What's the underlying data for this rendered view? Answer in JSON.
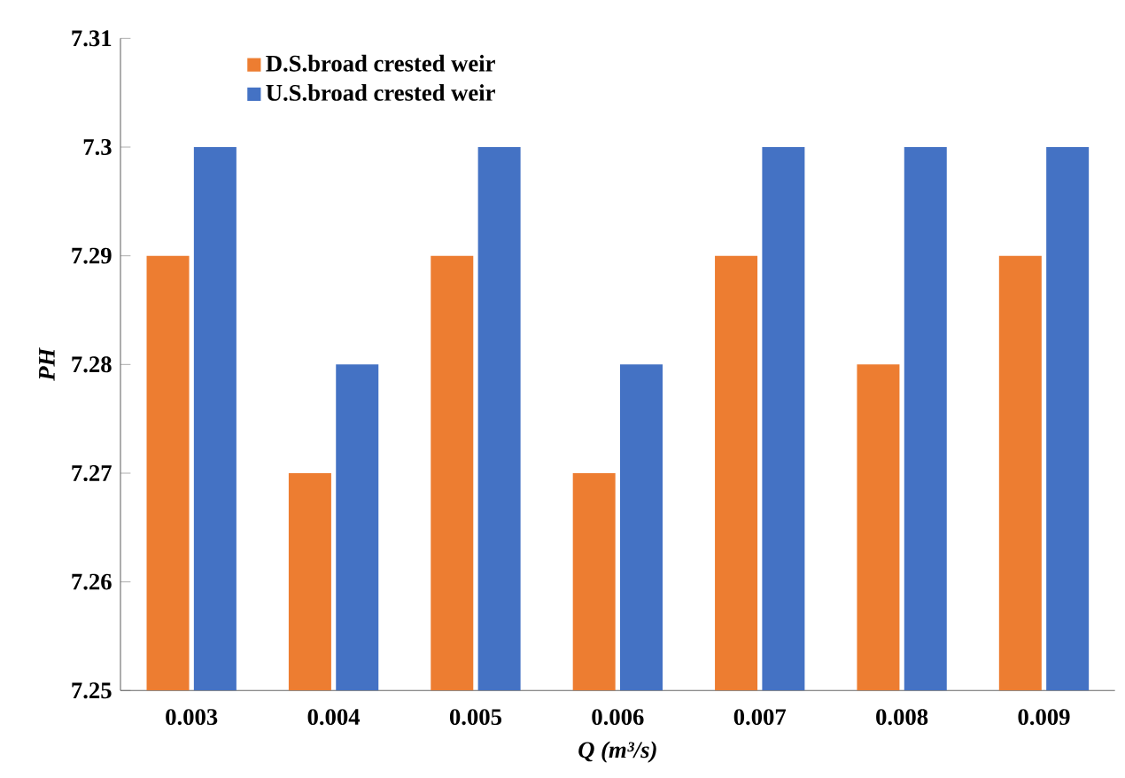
{
  "chart_data": {
    "type": "bar",
    "xlabel": "Q (m³/s)",
    "ylabel": "PH",
    "categories": [
      "0.003",
      "0.004",
      "0.005",
      "0.006",
      "0.007",
      "0.008",
      "0.009"
    ],
    "series": [
      {
        "name": "D.S.broad crested weir",
        "color": "#ed7d31",
        "values": [
          7.29,
          7.27,
          7.29,
          7.27,
          7.29,
          7.28,
          7.29
        ]
      },
      {
        "name": "U.S.broad crested weir",
        "color": "#4472c4",
        "values": [
          7.3,
          7.28,
          7.3,
          7.28,
          7.3,
          7.3,
          7.3
        ]
      }
    ],
    "ylim": [
      7.25,
      7.31
    ],
    "yticks": [
      7.25,
      7.26,
      7.27,
      7.28,
      7.29,
      7.3,
      7.31
    ],
    "legend": "top left"
  }
}
